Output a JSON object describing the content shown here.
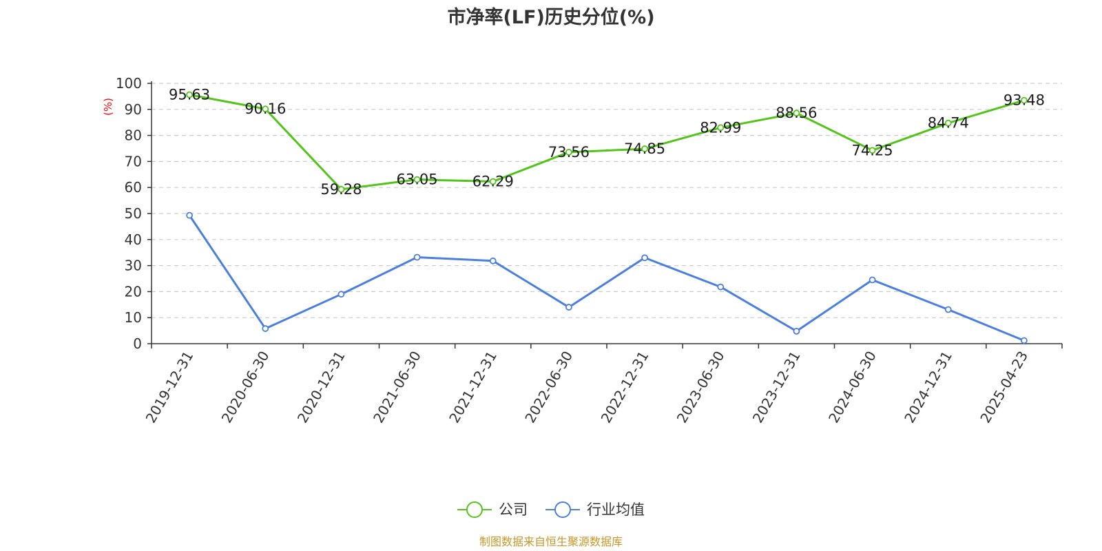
{
  "chart_data": {
    "type": "line",
    "title": "市净率(LF)历史分位(%)",
    "ylabel": "(%)",
    "ylim": [
      0,
      100
    ],
    "yticks": [
      0,
      10,
      20,
      30,
      40,
      50,
      60,
      70,
      80,
      90,
      100
    ],
    "grid": true,
    "legend_position": "bottom-center",
    "categories": [
      "2019-12-31",
      "2020-06-30",
      "2020-12-31",
      "2021-06-30",
      "2021-12-31",
      "2022-06-30",
      "2022-12-31",
      "2023-06-30",
      "2023-12-31",
      "2024-06-30",
      "2024-12-31",
      "2025-04-23"
    ],
    "series": [
      {
        "name": "公司",
        "color": "#52c41a",
        "show_labels": true,
        "values": [
          95.63,
          90.16,
          59.28,
          63.05,
          62.29,
          73.56,
          74.85,
          82.99,
          88.56,
          74.25,
          84.74,
          93.48
        ]
      },
      {
        "name": "行业均值",
        "color": "#4a7fe0",
        "show_labels": false,
        "values": [
          49.3,
          5.8,
          19.0,
          33.2,
          31.8,
          14.0,
          33.0,
          21.8,
          4.8,
          24.5,
          13.1,
          1.2
        ]
      }
    ]
  },
  "footer": {
    "source": "制图数据来自恒生聚源数据库"
  }
}
